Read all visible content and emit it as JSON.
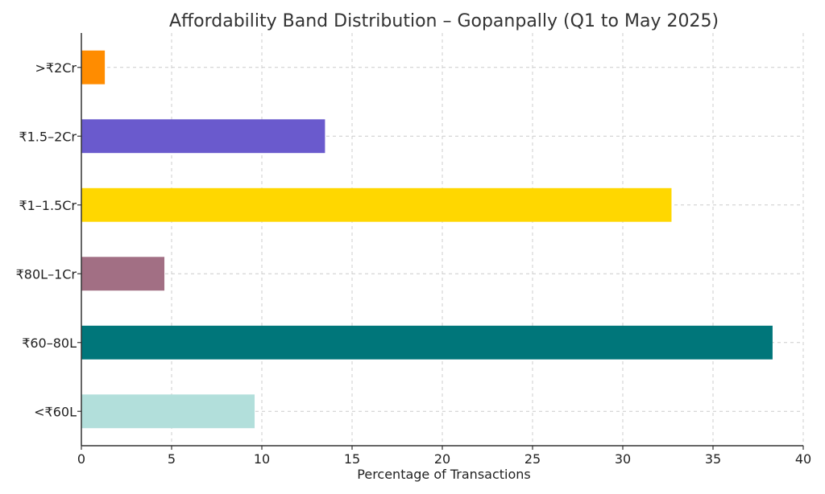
{
  "chart_data": {
    "type": "bar",
    "orientation": "horizontal",
    "title": "Affordability Band Distribution – Gopanpally (Q1 to May 2025)",
    "xlabel": "Percentage of Transactions",
    "ylabel": "",
    "xlim": [
      0,
      40
    ],
    "xticks": [
      0,
      5,
      10,
      15,
      20,
      25,
      30,
      35,
      40
    ],
    "grid": true,
    "categories": [
      "<₹60L",
      "₹60–80L",
      "₹80L–1Cr",
      "₹1–1.5Cr",
      "₹1.5–2Cr",
      ">₹2Cr"
    ],
    "values": [
      9.6,
      38.3,
      4.6,
      32.7,
      13.5,
      1.3
    ],
    "colors": [
      "#b2dfdb",
      "#00767a",
      "#a26f84",
      "#ffd700",
      "#6a5acd",
      "#ff8c00"
    ]
  }
}
